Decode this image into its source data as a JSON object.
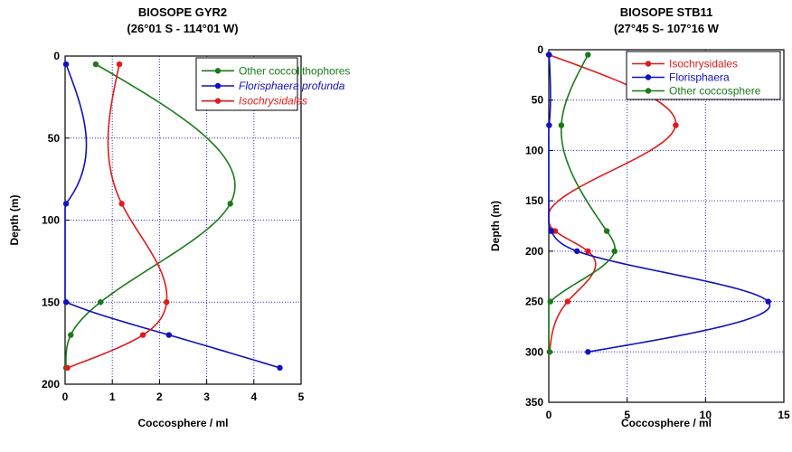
{
  "chart_data": [
    {
      "type": "line",
      "title": "BIOSOPE GYR2",
      "subtitle": "(26°01 S - 114°01 W)",
      "xlabel": "Coccosphere / ml",
      "ylabel": "Depth (m)",
      "xlim": [
        0,
        5
      ],
      "ylim": [
        0,
        200
      ],
      "y_inverted": true,
      "grid": true,
      "grid_style": "dotted",
      "xticks": [
        "0",
        "1",
        "2",
        "3",
        "4",
        "5"
      ],
      "yticks": [
        "0",
        "50",
        "100",
        "150",
        "200"
      ],
      "legend_position": "top-right",
      "series": [
        {
          "name": "Other coccolithophores",
          "italic": false,
          "color": "#1a7a1a",
          "points": [
            [
              0.65,
              5
            ],
            [
              3.5,
              90
            ],
            [
              0.75,
              150
            ],
            [
              0.12,
              170
            ],
            [
              0.02,
              190
            ]
          ]
        },
        {
          "name": "Florisphaera profunda",
          "italic": true,
          "color": "#1010c0",
          "points": [
            [
              0.02,
              5
            ],
            [
              0.02,
              90
            ],
            [
              0.02,
              150
            ],
            [
              2.2,
              170
            ],
            [
              4.55,
              190
            ]
          ]
        },
        {
          "name": "Isochrysidales",
          "italic": true,
          "color": "#e01a1a",
          "points": [
            [
              1.15,
              5
            ],
            [
              1.2,
              90
            ],
            [
              2.15,
              150
            ],
            [
              1.65,
              170
            ],
            [
              0.05,
              190
            ]
          ]
        }
      ]
    },
    {
      "type": "line",
      "title": "BIOSOPE STB11",
      "subtitle": "(27°45 S- 107°16 W",
      "xlabel": "Coccosphere / ml",
      "ylabel": "Depth (m)",
      "xlim": [
        0,
        15
      ],
      "ylim": [
        0,
        350
      ],
      "y_inverted": true,
      "grid": true,
      "grid_style": "dotted",
      "xticks": [
        "0",
        "5",
        "10",
        "15"
      ],
      "yticks": [
        "0",
        "50",
        "100",
        "150",
        "200",
        "250",
        "300",
        "350"
      ],
      "legend_position": "top-right",
      "series": [
        {
          "name": "Isochrysidales",
          "italic": false,
          "color": "#e01a1a",
          "points": [
            [
              0,
              5
            ],
            [
              8.1,
              75
            ],
            [
              0.4,
              180
            ],
            [
              2.5,
              200
            ],
            [
              1.2,
              250
            ],
            [
              0.05,
              300
            ]
          ]
        },
        {
          "name": "Florisphaera",
          "italic": false,
          "color": "#1010c0",
          "points": [
            [
              0.02,
              5
            ],
            [
              0.02,
              75
            ],
            [
              0.15,
              180
            ],
            [
              1.8,
              200
            ],
            [
              14,
              250
            ],
            [
              2.5,
              300
            ]
          ]
        },
        {
          "name": "Other coccosphere",
          "italic": false,
          "color": "#1a7a1a",
          "points": [
            [
              2.5,
              5
            ],
            [
              0.8,
              75
            ],
            [
              3.7,
              180
            ],
            [
              4.2,
              200
            ],
            [
              0.1,
              250
            ],
            [
              0.05,
              300
            ]
          ]
        }
      ]
    }
  ]
}
